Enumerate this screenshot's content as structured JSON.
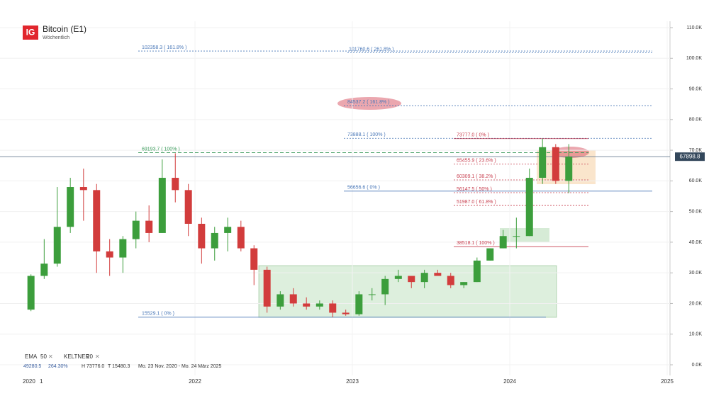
{
  "chart_data": {
    "type": "candlestick",
    "title": "Bitcoin (E1)",
    "subtitle": "Wöchentlich",
    "logo": "IG",
    "x": [
      2020.958,
      2021.042,
      2021.125,
      2021.208,
      2021.292,
      2021.375,
      2021.458,
      2021.542,
      2021.625,
      2021.708,
      2021.792,
      2021.875,
      2021.958,
      2022.042,
      2022.125,
      2022.208,
      2022.292,
      2022.375,
      2022.458,
      2022.542,
      2022.625,
      2022.708,
      2022.792,
      2022.875,
      2022.958,
      2023.042,
      2023.125,
      2023.208,
      2023.292,
      2023.375,
      2023.458,
      2023.542,
      2023.625,
      2023.708,
      2023.792,
      2023.875,
      2023.958,
      2024.042,
      2024.125,
      2024.208,
      2024.292,
      2024.375
    ],
    "open": [
      18000,
      29000,
      33000,
      45000,
      58000,
      57000,
      37000,
      35000,
      41000,
      47000,
      43000,
      61000,
      57000,
      46000,
      38000,
      43000,
      45000,
      38000,
      31000,
      19000,
      23000,
      20000,
      19000,
      20000,
      17000,
      16500,
      23000,
      23000,
      28000,
      29000,
      27000,
      30000,
      29000,
      26000,
      27000,
      34000,
      38000,
      42000,
      42000,
      61000,
      71000,
      60000
    ],
    "high": [
      29500,
      41000,
      58000,
      61000,
      64000,
      59000,
      41000,
      42000,
      50000,
      52000,
      67000,
      69000,
      59000,
      48000,
      45000,
      48000,
      47000,
      39000,
      32000,
      24000,
      25000,
      22000,
      21000,
      21000,
      18000,
      24000,
      25000,
      29000,
      31000,
      29000,
      31000,
      31000,
      30000,
      27000,
      35000,
      38000,
      44000,
      48000,
      64000,
      73776,
      72000,
      72000
    ],
    "low": [
      17500,
      28000,
      32000,
      43000,
      47000,
      30000,
      29000,
      30000,
      38000,
      40000,
      43000,
      53000,
      42000,
      33000,
      34000,
      37000,
      37000,
      26000,
      17000,
      18000,
      19000,
      18000,
      18000,
      15500,
      16000,
      16000,
      21000,
      19500,
      27000,
      25000,
      25000,
      29000,
      25000,
      25000,
      27000,
      34000,
      38000,
      38000,
      42000,
      59000,
      59000,
      56000
    ],
    "close": [
      29000,
      33000,
      45000,
      58000,
      57000,
      37000,
      35000,
      41000,
      47000,
      43000,
      61000,
      57000,
      46000,
      38000,
      43000,
      45000,
      38000,
      31000,
      19000,
      23000,
      20000,
      19000,
      20000,
      17000,
      16500,
      23000,
      23000,
      28000,
      29000,
      27000,
      30000,
      29000,
      26000,
      27000,
      34000,
      38000,
      42000,
      42000,
      61000,
      71000,
      60000,
      67898.8
    ],
    "up_color": "#3c9e3c",
    "down_color": "#d23c3c",
    "ylim": [
      0,
      110000
    ],
    "yticks": [
      {
        "value": 0,
        "label": "0.0K"
      },
      {
        "value": 10000,
        "label": "10.0K"
      },
      {
        "value": 20000,
        "label": "20.0K"
      },
      {
        "value": 30000,
        "label": "30.0K"
      },
      {
        "value": 40000,
        "label": "40.0K"
      },
      {
        "value": 50000,
        "label": "50.0K"
      },
      {
        "value": 60000,
        "label": "60.0K"
      },
      {
        "value": 70000,
        "label": "70.0K"
      },
      {
        "value": 80000,
        "label": "80.0K"
      },
      {
        "value": 90000,
        "label": "90.0K"
      },
      {
        "value": 100000,
        "label": "100.0K"
      },
      {
        "value": 110000,
        "label": "110.0K"
      }
    ],
    "xticks": [
      2022,
      2023,
      2024,
      2025
    ],
    "x_start_labels": [
      "2020",
      "1"
    ],
    "current_price": 67898.8,
    "levels": [
      {
        "value": 102358.3,
        "label": "102358.3 ( 161.8% )",
        "color": "#4a78b8"
      },
      {
        "value": 101760.6,
        "label": "101760.6 ( 261.8% )",
        "color": "#4a78b8"
      },
      {
        "value": 84537.2,
        "label": "84537.2 ( 161.8% )",
        "color": "#4a78b8"
      },
      {
        "value": 73888.1,
        "label": "73888.1 ( 100% )",
        "color": "#4a78b8"
      },
      {
        "value": 69193.7,
        "label": "69193.7 ( 100% )",
        "color": "#3a9a5a"
      },
      {
        "value": 56656.6,
        "label": "56656.6 ( 0% )",
        "color": "#4a78b8"
      },
      {
        "value": 15529.1,
        "label": "15529.1 ( 0% )",
        "color": "#4a78b8"
      },
      {
        "value": 73777.0,
        "label": "73777.0 ( 0% )",
        "color": "#c84050"
      },
      {
        "value": 65455.9,
        "label": "65455.9 ( 23.6% )",
        "color": "#c84050"
      },
      {
        "value": 60309.1,
        "label": "60309.1 ( 38.2% )",
        "color": "#c84050"
      },
      {
        "value": 56147.5,
        "label": "56147.5 ( 50% )",
        "color": "#c84050"
      },
      {
        "value": 51987.0,
        "label": "51987.0 ( 61.8% )",
        "color": "#c84050"
      },
      {
        "value": 38518.1,
        "label": "38518.1 ( 100% )",
        "color": "#c84050"
      }
    ],
    "indicators": [
      "EMA",
      "50",
      "KELTNER",
      "20"
    ],
    "stats": [
      "49280.5",
      "264.30%",
      "H 73776.0",
      "T 15480.3",
      "Mo. 23 Nov. 2020 - Mo. 24 März 2025"
    ]
  }
}
